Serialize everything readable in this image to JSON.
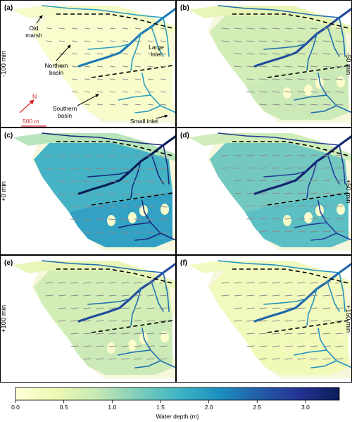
{
  "panels": [
    {
      "letter": "(a)",
      "time": "-100 min",
      "wetness": 0.08
    },
    {
      "letter": "(b)",
      "time": "-50 min",
      "wetness": 0.4
    },
    {
      "letter": "(c)",
      "time": "+0 min",
      "wetness": 0.95
    },
    {
      "letter": "(d)",
      "time": "+50 min",
      "wetness": 0.75
    },
    {
      "letter": "(e)",
      "time": "+100 min",
      "wetness": 0.4
    },
    {
      "letter": "(f)",
      "time": "+150 min",
      "wetness": 0.18
    }
  ],
  "annotations": {
    "old_marsh": [
      "Old",
      "marsh"
    ],
    "northern_basin": [
      "Northern",
      "basin"
    ],
    "large_inlet": [
      "Large",
      "inlet"
    ],
    "southern_basin": [
      "Southern",
      "basin"
    ],
    "small_inlet": "Small inlet",
    "north_label": "N",
    "scale_label": "500 m"
  },
  "colorbar": {
    "label": "Water depth (m)",
    "ticks": [
      "0.0",
      "0.5",
      "1.0",
      "1.5",
      "2.0",
      "2.5",
      "3.0"
    ],
    "min": 0,
    "max": 3.35,
    "colors": [
      "#ffffd9",
      "#edf8b1",
      "#c7e9b4",
      "#7fcdbb",
      "#41b6c4",
      "#1d91c0",
      "#225ea8",
      "#253494",
      "#081d58"
    ]
  },
  "colors": {
    "land": "#f6f7dc",
    "dashed_line": "#000000",
    "north_arrow": "#d62728",
    "flow_arrow": "#8c8c8c"
  }
}
